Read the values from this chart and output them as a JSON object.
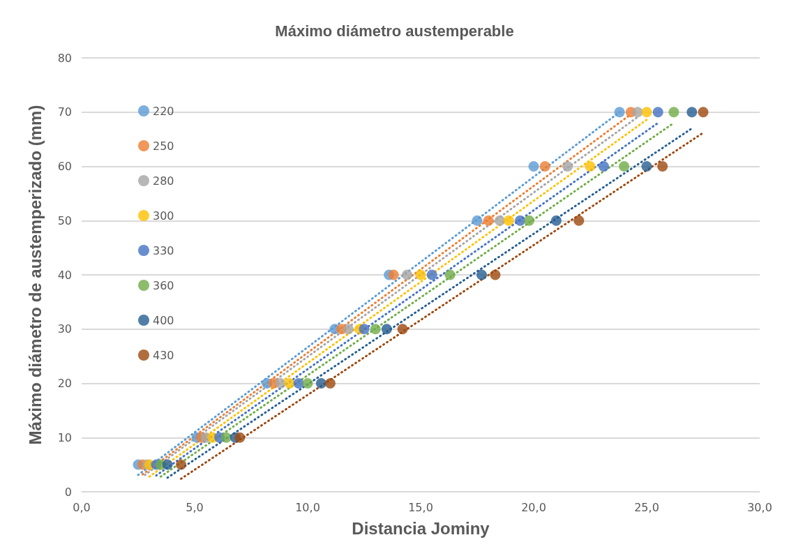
{
  "chart_data": {
    "type": "scatter",
    "title": "Máximo diámetro austemperable",
    "xlabel": "Distancia Jominy",
    "ylabel": "Máximo diámetro de austemperizado (mm)",
    "xlim": [
      0,
      30
    ],
    "xticks": [
      {
        "value": 0,
        "label": "0,0"
      },
      {
        "value": 5,
        "label": "5,0"
      },
      {
        "value": 10,
        "label": "10,0"
      },
      {
        "value": 15,
        "label": "15,0"
      },
      {
        "value": 20,
        "label": "20,0"
      },
      {
        "value": 25,
        "label": "25,0"
      },
      {
        "value": 30,
        "label": "30,0"
      }
    ],
    "ylim": [
      0,
      80
    ],
    "yticks": [
      0,
      10,
      20,
      30,
      40,
      50,
      60,
      70,
      80
    ],
    "grid": "y",
    "legend": "top left",
    "marker": "circle",
    "series": [
      {
        "name": "220",
        "color": "#5b9bd5",
        "x": [
          2.5,
          5.1,
          8.2,
          11.2,
          13.6,
          17.5,
          20.0,
          23.8
        ],
        "values": [
          5,
          10,
          20,
          30,
          40,
          50,
          60,
          70
        ]
      },
      {
        "name": "250",
        "color": "#ed7d31",
        "x": [
          2.7,
          5.3,
          8.5,
          11.5,
          13.8,
          18.0,
          20.5,
          24.3
        ],
        "values": [
          5,
          10,
          20,
          30,
          40,
          50,
          60,
          70
        ]
      },
      {
        "name": "280",
        "color": "#a5a5a5",
        "x": [
          2.9,
          5.5,
          8.8,
          11.8,
          14.4,
          18.5,
          21.5,
          24.6
        ],
        "values": [
          5,
          10,
          20,
          30,
          40,
          50,
          60,
          70
        ]
      },
      {
        "name": "300",
        "color": "#ffc000",
        "x": [
          3.0,
          5.8,
          9.2,
          12.3,
          15.0,
          18.9,
          22.5,
          25.0
        ],
        "values": [
          5,
          10,
          20,
          30,
          40,
          50,
          60,
          70
        ]
      },
      {
        "name": "330",
        "color": "#4472c4",
        "x": [
          3.3,
          6.1,
          9.6,
          12.5,
          15.5,
          19.4,
          23.1,
          25.5
        ],
        "values": [
          5,
          10,
          20,
          30,
          40,
          50,
          60,
          70
        ]
      },
      {
        "name": "360",
        "color": "#70ad47",
        "x": [
          3.5,
          6.4,
          10.0,
          13.0,
          16.3,
          19.8,
          24.0,
          26.2
        ],
        "values": [
          5,
          10,
          20,
          30,
          40,
          50,
          60,
          70
        ]
      },
      {
        "name": "400",
        "color": "#255e91",
        "x": [
          3.8,
          6.8,
          10.6,
          13.5,
          17.7,
          21.0,
          25.0,
          27.0
        ],
        "values": [
          5,
          10,
          20,
          30,
          40,
          50,
          60,
          70
        ]
      },
      {
        "name": "430",
        "color": "#9e480e",
        "x": [
          4.4,
          7.0,
          11.0,
          14.2,
          18.3,
          22.0,
          25.7,
          27.5
        ],
        "values": [
          5,
          10,
          20,
          30,
          40,
          50,
          60,
          70
        ]
      },
      {
        "type": "line",
        "line_style": "dotted",
        "marker": "none",
        "color": "#5b9bd5",
        "x": [
          2.5,
          23.8
        ],
        "values": [
          3.1,
          70.0
        ]
      },
      {
        "type": "line",
        "line_style": "dotted",
        "marker": "none",
        "color": "#ed7d31",
        "x": [
          2.7,
          24.3
        ],
        "values": [
          3.2,
          69.6
        ]
      },
      {
        "type": "line",
        "line_style": "dotted",
        "marker": "none",
        "color": "#a5a5a5",
        "x": [
          2.8,
          24.6
        ],
        "values": [
          3.1,
          69.1
        ]
      },
      {
        "type": "line",
        "line_style": "dotted",
        "marker": "none",
        "color": "#ffc000",
        "x": [
          3.0,
          25.0
        ],
        "values": [
          2.8,
          68.6
        ]
      },
      {
        "type": "line",
        "line_style": "dotted",
        "marker": "none",
        "color": "#4472c4",
        "x": [
          3.3,
          25.5
        ],
        "values": [
          3.0,
          68.0
        ]
      },
      {
        "type": "line",
        "line_style": "dotted",
        "marker": "none",
        "color": "#70ad47",
        "x": [
          3.5,
          26.2
        ],
        "values": [
          2.8,
          68.0
        ]
      },
      {
        "type": "line",
        "line_style": "dotted",
        "marker": "none",
        "color": "#255e91",
        "x": [
          3.8,
          27.0
        ],
        "values": [
          2.6,
          67.0
        ]
      },
      {
        "type": "line",
        "line_style": "dotted",
        "marker": "none",
        "color": "#9e480e",
        "x": [
          4.4,
          27.5
        ],
        "values": [
          2.4,
          66.2
        ]
      }
    ]
  }
}
